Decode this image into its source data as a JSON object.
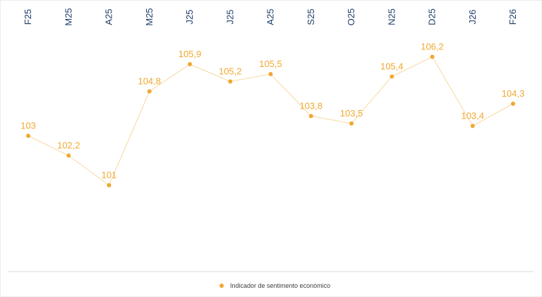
{
  "chart_data": {
    "type": "line",
    "categories": [
      "F25",
      "M25",
      "A25",
      "M25",
      "J25",
      "J25",
      "A25",
      "S25",
      "O25",
      "N25",
      "D25",
      "J26",
      "F26"
    ],
    "series": [
      {
        "name": "Indicador de sentimento económico",
        "values": [
          103,
          102.2,
          101,
          104.8,
          105.9,
          105.2,
          105.5,
          103.8,
          103.5,
          105.4,
          106.2,
          103.4,
          104.3
        ],
        "labels": [
          "103",
          "102,2",
          "101",
          "104,8",
          "105,9",
          "105,2",
          "105,5",
          "103,8",
          "103,5",
          "105,4",
          "106,2",
          "103,4",
          "104,3"
        ],
        "color": "#f0a830"
      }
    ],
    "title": "",
    "xlabel": "",
    "ylabel": "",
    "ylim": [
      97.5,
      108.5
    ],
    "grid": false,
    "legend": "bottom",
    "category_axis_position": "top",
    "category_label_rotation": "vertical"
  },
  "legend": {
    "label": "Indicador de sentimento económico"
  },
  "colors": {
    "series": "#f0a830",
    "category_text": "#1f3d6b",
    "axis_line": "#d9d9d9"
  }
}
